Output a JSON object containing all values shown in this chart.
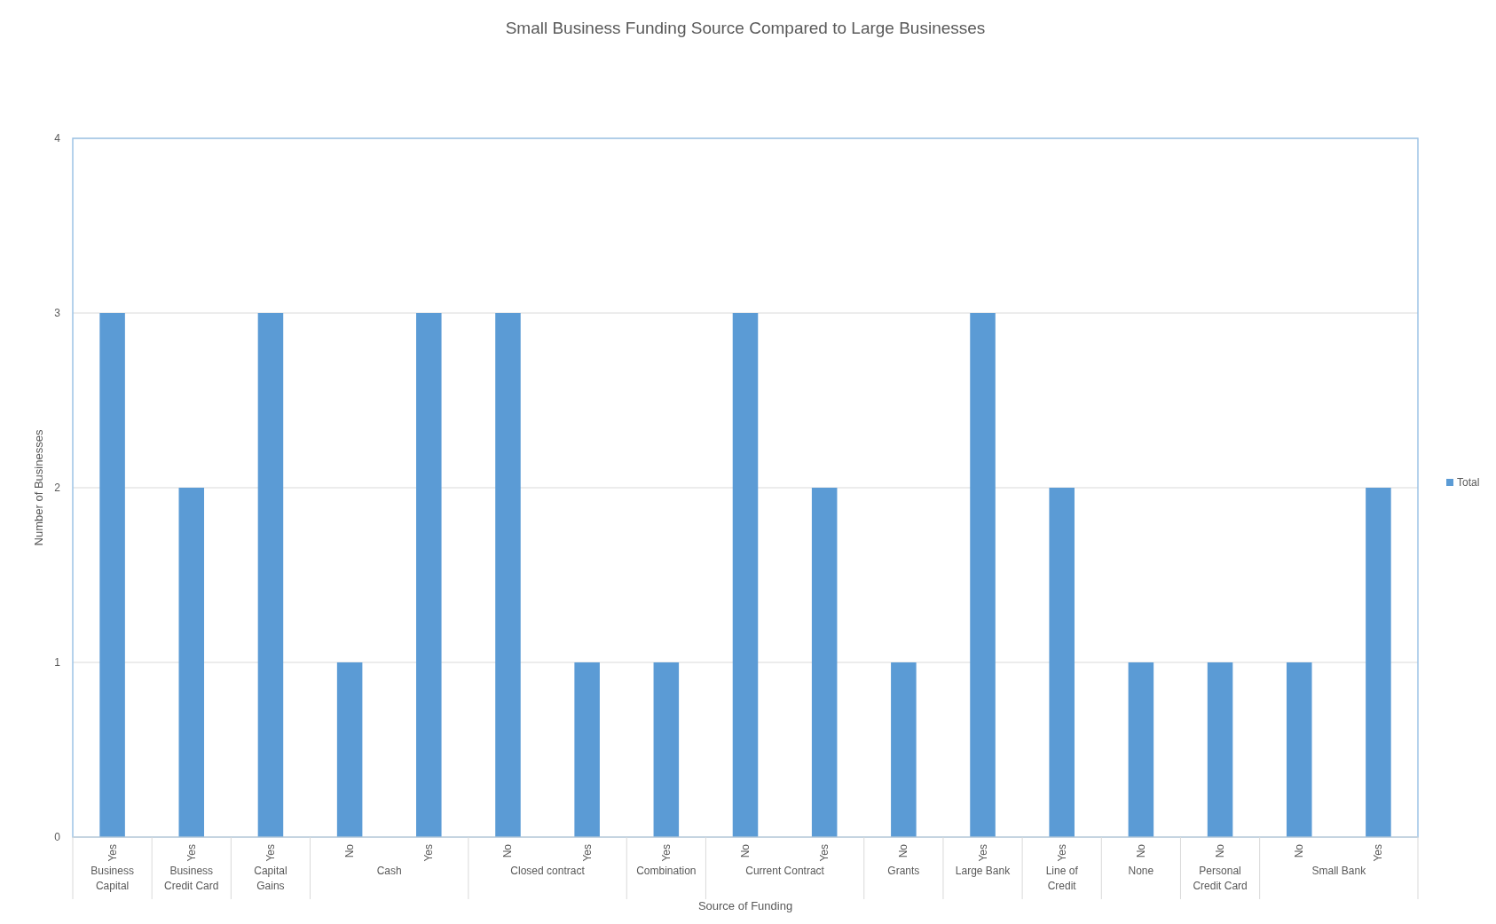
{
  "chart_data": {
    "type": "bar",
    "title": "Small Business Funding Source Compared to Large Businesses",
    "xlabel": "Source of Funding",
    "ylabel": "Number of Businesses",
    "categories": [
      "Yes",
      "Yes",
      "Yes",
      "No",
      "Yes",
      "No",
      "Yes",
      "Yes",
      "No",
      "Yes",
      "No",
      "Yes",
      "Yes",
      "No",
      "No",
      "No",
      "Yes"
    ],
    "annotations": [
      "Business Capital",
      "Business Credit Card",
      "Capital Gains",
      "Cash",
      "Closed contract",
      "Combination",
      "Current Contract",
      "Grants",
      "Large Bank",
      "Line of Credit",
      "None",
      "Personal Credit Card",
      "Small Bank"
    ],
    "series": [
      {
        "name": "Total",
        "color": "#5b9bd5",
        "values": [
          3,
          2,
          3,
          1,
          3,
          3,
          1,
          1,
          3,
          2,
          1,
          3,
          2,
          1,
          1,
          1,
          2
        ]
      }
    ],
    "ylim": [
      0,
      4
    ],
    "yticks": [
      0,
      1,
      2,
      3,
      4
    ],
    "grid": "y",
    "legend": "right"
  }
}
